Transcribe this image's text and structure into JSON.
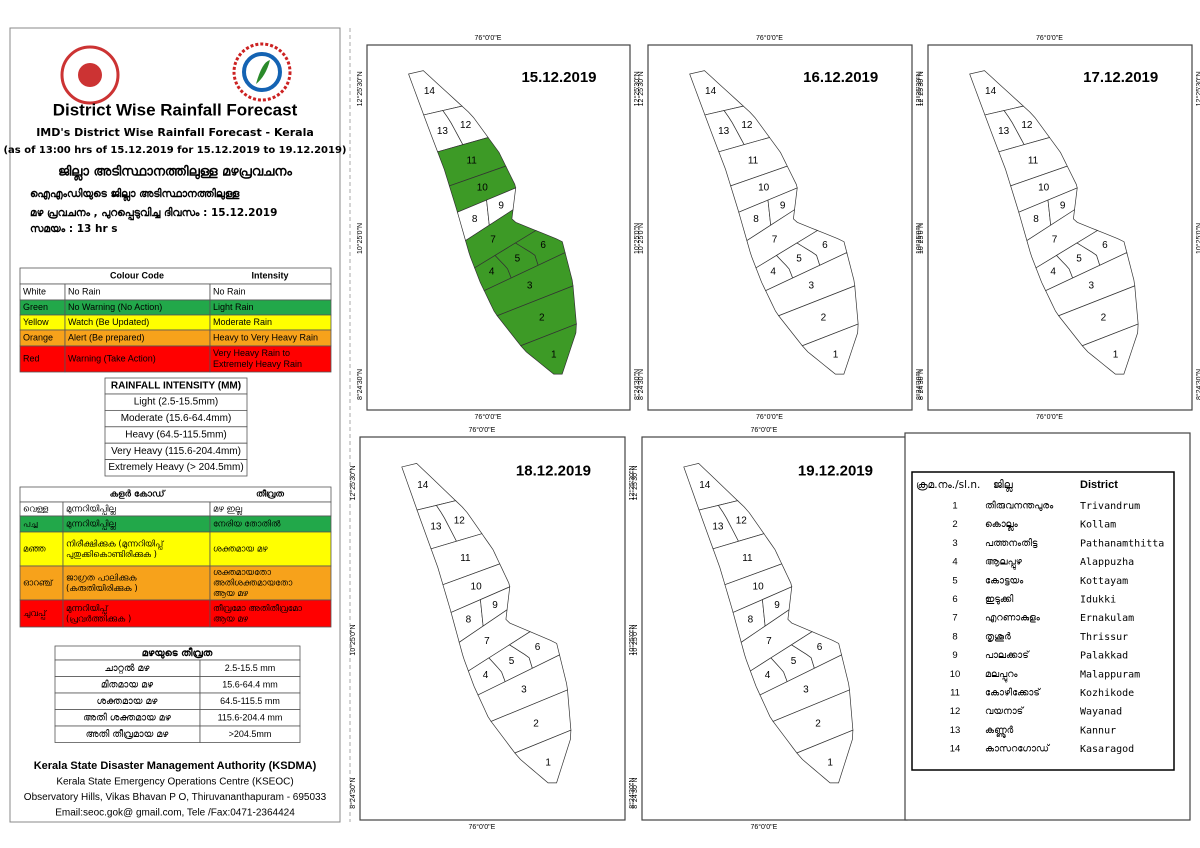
{
  "header": {
    "title": "District Wise Rainfall Forecast",
    "subtitle": "IMD's District Wise Rainfall Forecast - Kerala",
    "issued": "(as of 13:00 hrs of 15.12.2019  for 15.12.2019  to 19.12.2019)",
    "ml_title": "ജില്ലാ അടിസ്ഥാനത്തിലുള്ള മഴപ്രവചനം",
    "ml_lines": [
      "ഐഎംഡിയുടെ ജില്ലാ   അടിസ്ഥാനത്തിലുള്ള",
      "മഴ പ്രവചനം  , പുറപ്പെടുവിച്ച    ദിവസം : 15.12.2019",
      "സമയം : 13  hr s"
    ]
  },
  "colour_code": {
    "header": [
      "Colour Code",
      "Intensity"
    ],
    "rows": [
      {
        "cells": [
          "White",
          "No Rain",
          "No Rain"
        ],
        "color": "#ffffff"
      },
      {
        "cells": [
          "Green",
          "No Warning (No Action)",
          "Light Rain"
        ],
        "color": "#22a84a"
      },
      {
        "cells": [
          "Yellow",
          "Watch (Be Updated)",
          "Moderate Rain"
        ],
        "color": "#ffff00"
      },
      {
        "cells": [
          "Orange",
          "Alert (Be prepared)",
          "Heavy to Very Heavy Rain"
        ],
        "color": "#f7a21b"
      },
      {
        "cells": [
          "Red",
          "Warning (Take Action)",
          [
            "Very Heavy Rain to",
            "Extremely Heavy Rain"
          ]
        ],
        "color": "#ff0000"
      }
    ]
  },
  "rainfall_intensity": {
    "title": "RAINFALL INTENSITY (MM)",
    "rows": [
      "Light (2.5-15.5mm)",
      "Moderate (15.6-64.4mm)",
      "Heavy (64.5-115.5mm)",
      "Very Heavy (115.6-204.4mm)",
      "Extremely Heavy (> 204.5mm)"
    ]
  },
  "ml_colour_code": {
    "header": [
      "കളർ കോഡ്",
      "തീവ്രത"
    ],
    "rows": [
      {
        "cells": [
          "വെള്ള",
          "മുന്നറിയിപ്പില്ല",
          "മഴ ഇല്ല"
        ],
        "color": "#ffffff"
      },
      {
        "cells": [
          "പച്ച",
          "മുന്നറിയിപ്പില്ല",
          "നേരിയ തോതിൽ"
        ],
        "color": "#22a84a"
      },
      {
        "cells": [
          "മഞ്ഞ",
          [
            "നിരീക്ഷിക്കുക (മുന്നറിയിപ്പ്",
            "പുതുക്കികൊണ്ടിരിക്കുക )"
          ],
          "ശക്തമായ മഴ"
        ],
        "color": "#ffff00"
      },
      {
        "cells": [
          "ഓറഞ്ച്",
          [
            "ജാഗ്രത പാലിക്കുക",
            "(കരുതിയിരിക്കുക )"
          ],
          [
            "ശക്തമായതോ",
            "അതിശക്തമായതോ",
            "ആയ മഴ"
          ]
        ],
        "color": "#f7a21b"
      },
      {
        "cells": [
          "ചുവപ്പ്",
          [
            "മുന്നറിയിപ്പ്",
            "(പ്രവർത്തിക്കുക )"
          ],
          [
            "തീവ്രമോ അതിതീവ്രമോ",
            "ആയ മഴ"
          ]
        ],
        "color": "#ff0000"
      }
    ]
  },
  "ml_intensity": {
    "title": "മഴയുടെ തീവ്രത",
    "rows": [
      [
        "ചാറ്റൽ മഴ",
        "2.5-15.5 mm"
      ],
      [
        "മിതമായ മഴ",
        "15.6-64.4 mm"
      ],
      [
        "ശക്തമായ മഴ",
        "64.5-115.5 mm"
      ],
      [
        "അതി ശക്തമായ മഴ",
        "115.6-204.4 mm"
      ],
      [
        "അതി തീവ്രമായ മഴ",
        ">204.5mm"
      ]
    ]
  },
  "footer": {
    "org": "Kerala State Disaster Management Authority (KSDMA)",
    "lines": [
      "Kerala State Emergency Operations Centre (KSEOC)",
      "Observatory Hills, Vikas Bhavan P O, Thiruvananthapuram - 695033",
      "Email:seoc.gok@ gmail.com, Tele /Fax:0471-2364424"
    ]
  },
  "coord_labels": {
    "lon": "76°0'0\"E",
    "lats": [
      "12°25'30\"N",
      "10°25'0\"N",
      "8°24'30\"N"
    ]
  },
  "maps": [
    {
      "date": "15.12.2019",
      "colors": [
        "#3d9a26",
        "#3d9a26",
        "#3d9a26",
        "#3d9a26",
        "#3d9a26",
        "#3d9a26",
        "#3d9a26",
        "#ffffff",
        "#ffffff",
        "#3d9a26",
        "#3d9a26",
        "#ffffff",
        "#ffffff",
        "#ffffff"
      ]
    },
    {
      "date": "16.12.2019",
      "colors": [
        "#ffffff",
        "#ffffff",
        "#ffffff",
        "#ffffff",
        "#ffffff",
        "#ffffff",
        "#ffffff",
        "#ffffff",
        "#ffffff",
        "#ffffff",
        "#ffffff",
        "#ffffff",
        "#ffffff",
        "#ffffff"
      ]
    },
    {
      "date": "17.12.2019",
      "colors": [
        "#ffffff",
        "#ffffff",
        "#ffffff",
        "#ffffff",
        "#ffffff",
        "#ffffff",
        "#ffffff",
        "#ffffff",
        "#ffffff",
        "#ffffff",
        "#ffffff",
        "#ffffff",
        "#ffffff",
        "#ffffff"
      ]
    },
    {
      "date": "18.12.2019",
      "colors": [
        "#ffffff",
        "#ffffff",
        "#ffffff",
        "#ffffff",
        "#ffffff",
        "#ffffff",
        "#ffffff",
        "#ffffff",
        "#ffffff",
        "#ffffff",
        "#ffffff",
        "#ffffff",
        "#ffffff",
        "#ffffff"
      ]
    },
    {
      "date": "19.12.2019",
      "colors": [
        "#ffffff",
        "#ffffff",
        "#ffffff",
        "#ffffff",
        "#ffffff",
        "#ffffff",
        "#ffffff",
        "#ffffff",
        "#ffffff",
        "#ffffff",
        "#ffffff",
        "#ffffff",
        "#ffffff",
        "#ffffff"
      ]
    }
  ],
  "districts": {
    "header": [
      "ക്രമ.നം./sl.n.",
      "ജില്ല",
      "District"
    ],
    "rows": [
      [
        1,
        "തിരുവനന്തപുരം",
        "Trivandrum"
      ],
      [
        2,
        "കൊല്ലം",
        "Kollam"
      ],
      [
        3,
        "പത്തനംതിട്ട",
        "Pathanamthitta"
      ],
      [
        4,
        "ആലപ്പുഴ",
        "Alappuzha"
      ],
      [
        5,
        "കോട്ടയം",
        "Kottayam"
      ],
      [
        6,
        "ഇടുക്കി",
        "Idukki"
      ],
      [
        7,
        "എറണാകുളം",
        "Ernakulam"
      ],
      [
        8,
        "തൃശൂർ",
        "Thrissur"
      ],
      [
        9,
        "പാലക്കാട്",
        "Palakkad"
      ],
      [
        10,
        "മലപ്പുറം",
        "Malappuram"
      ],
      [
        11,
        "കോഴിക്കോട്",
        "Kozhikode"
      ],
      [
        12,
        "വയനാട്",
        "Wayanad"
      ],
      [
        13,
        "കണ്ണൂർ",
        "Kannur"
      ],
      [
        14,
        "കാസറഗോഡ്",
        "Kasaragod"
      ]
    ]
  }
}
